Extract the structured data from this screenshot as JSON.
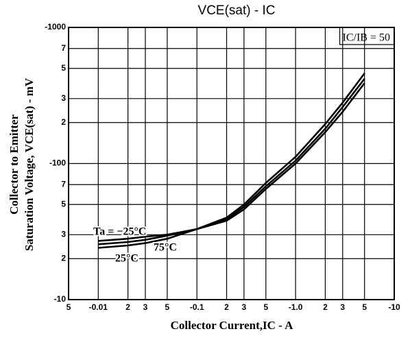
{
  "chart_data": {
    "type": "line",
    "title": "VCE(sat) - IC",
    "xlabel": "Collector Current,IC - A",
    "ylabel": [
      "Collector to Emitter",
      "Saturation Voltage, VCE(sat) - mV"
    ],
    "annotation": "IC/IB = 50",
    "log_x": true,
    "log_y": true,
    "grid": true,
    "xlim": [
      -0.005,
      -10
    ],
    "ylim": [
      -10,
      -1000
    ],
    "xticks": [
      {
        "value": -0.005,
        "label": "5"
      },
      -0.01,
      {
        "value": -0.02,
        "label": "2"
      },
      {
        "value": -0.03,
        "label": "3"
      },
      {
        "value": -0.05,
        "label": "5"
      },
      -0.1,
      {
        "value": -0.2,
        "label": "2"
      },
      {
        "value": -0.3,
        "label": "3"
      },
      {
        "value": -0.5,
        "label": "5"
      },
      {
        "value": -1,
        "label": "-1.0"
      },
      {
        "value": -2,
        "label": "2"
      },
      {
        "value": -3,
        "label": "3"
      },
      {
        "value": -5,
        "label": "5"
      },
      -10
    ],
    "yticks": [
      -1000,
      {
        "value": -700,
        "label": "7"
      },
      {
        "value": -500,
        "label": "5"
      },
      {
        "value": -300,
        "label": "3"
      },
      {
        "value": -200,
        "label": "2"
      },
      -100,
      {
        "value": -70,
        "label": "7"
      },
      {
        "value": -50,
        "label": "5"
      },
      {
        "value": -30,
        "label": "3"
      },
      {
        "value": -20,
        "label": "2"
      },
      -10
    ],
    "x": [
      -0.01,
      -0.02,
      -0.03,
      -0.05,
      -0.1,
      -0.2,
      -0.3,
      -0.5,
      -1,
      -2,
      -3,
      -5
    ],
    "series": [
      {
        "name": "Ta = −25°C",
        "color": "#000000",
        "values": [
          -27,
          -28,
          -29,
          -30,
          -33,
          -38,
          -46,
          -65,
          -100,
          -170,
          -240,
          -390
        ]
      },
      {
        "name": "25°C",
        "color": "#000000",
        "values": [
          -25.5,
          -26.5,
          -27.5,
          -29.5,
          -33,
          -39,
          -48,
          -68,
          -105,
          -180,
          -260,
          -420
        ]
      },
      {
        "name": "75°C",
        "color": "#000000",
        "values": [
          -24,
          -25,
          -26,
          -28,
          -33,
          -40,
          -50,
          -72,
          -112,
          -195,
          -280,
          -460
        ]
      }
    ]
  }
}
